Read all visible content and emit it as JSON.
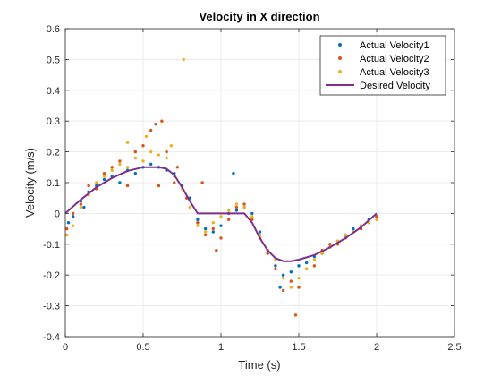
{
  "chart_data": {
    "type": "scatter",
    "title": "Velocity in X direction",
    "xlabel": "Time (s)",
    "ylabel": "Velocity (m/s)",
    "xlim": [
      0,
      2.5
    ],
    "ylim": [
      -0.4,
      0.6
    ],
    "xticks": [
      "0",
      "0.5",
      "1",
      "1.5",
      "2",
      "2.5"
    ],
    "yticks": [
      "-0.4",
      "-0.3",
      "-0.2",
      "-0.1",
      "0",
      "0.1",
      "0.2",
      "0.3",
      "0.4",
      "0.5",
      "0.6"
    ],
    "grid": true,
    "legend_position": "top-right",
    "series": [
      {
        "name": "Actual Velocity1",
        "type": "scatter",
        "color": "#0072BD",
        "points": [
          [
            0.02,
            -0.03
          ],
          [
            0.05,
            -0.01
          ],
          [
            0.1,
            0.04
          ],
          [
            0.15,
            0.07
          ],
          [
            0.2,
            0.09
          ],
          [
            0.25,
            0.11
          ],
          [
            0.3,
            0.12
          ],
          [
            0.35,
            0.1
          ],
          [
            0.4,
            0.14
          ],
          [
            0.45,
            0.13
          ],
          [
            0.5,
            0.15
          ],
          [
            0.55,
            0.16
          ],
          [
            0.6,
            0.15
          ],
          [
            0.65,
            0.14
          ],
          [
            0.7,
            0.13
          ],
          [
            0.75,
            0.09
          ],
          [
            0.8,
            0.05
          ],
          [
            0.85,
            -0.02
          ],
          [
            0.9,
            -0.05
          ],
          [
            0.95,
            -0.06
          ],
          [
            1.0,
            -0.04
          ],
          [
            1.05,
            0.0
          ],
          [
            1.1,
            0.01
          ],
          [
            1.15,
            0.02
          ],
          [
            1.2,
            0.0
          ],
          [
            1.25,
            -0.06
          ],
          [
            1.3,
            -0.12
          ],
          [
            1.35,
            -0.17
          ],
          [
            1.4,
            -0.2
          ],
          [
            1.45,
            -0.19
          ],
          [
            1.5,
            -0.17
          ],
          [
            1.55,
            -0.16
          ],
          [
            1.6,
            -0.14
          ],
          [
            1.65,
            -0.13
          ],
          [
            1.7,
            -0.11
          ],
          [
            1.75,
            -0.09
          ],
          [
            1.8,
            -0.07
          ],
          [
            1.85,
            -0.05
          ],
          [
            1.9,
            -0.04
          ],
          [
            1.95,
            -0.02
          ],
          [
            2.0,
            -0.01
          ],
          [
            1.38,
            -0.24
          ],
          [
            1.08,
            0.13
          ],
          [
            0.12,
            0.02
          ]
        ]
      },
      {
        "name": "Actual Velocity2",
        "type": "scatter",
        "color": "#D95319",
        "points": [
          [
            0.01,
            -0.05
          ],
          [
            0.05,
            0.0
          ],
          [
            0.1,
            0.03
          ],
          [
            0.15,
            0.09
          ],
          [
            0.2,
            0.08
          ],
          [
            0.25,
            0.13
          ],
          [
            0.3,
            0.15
          ],
          [
            0.35,
            0.17
          ],
          [
            0.4,
            0.09
          ],
          [
            0.45,
            0.2
          ],
          [
            0.5,
            0.22
          ],
          [
            0.55,
            0.27
          ],
          [
            0.58,
            0.29
          ],
          [
            0.6,
            0.09
          ],
          [
            0.62,
            0.3
          ],
          [
            0.65,
            0.2
          ],
          [
            0.7,
            0.1
          ],
          [
            0.72,
            0.15
          ],
          [
            0.78,
            0.05
          ],
          [
            0.85,
            -0.03
          ],
          [
            0.9,
            -0.07
          ],
          [
            0.95,
            -0.05
          ],
          [
            1.0,
            -0.08
          ],
          [
            1.05,
            -0.02
          ],
          [
            1.1,
            0.02
          ],
          [
            1.15,
            0.03
          ],
          [
            1.2,
            -0.02
          ],
          [
            1.25,
            -0.08
          ],
          [
            1.3,
            -0.13
          ],
          [
            1.35,
            -0.18
          ],
          [
            1.4,
            -0.25
          ],
          [
            1.45,
            -0.22
          ],
          [
            1.48,
            -0.33
          ],
          [
            1.5,
            -0.24
          ],
          [
            1.55,
            -0.18
          ],
          [
            1.6,
            -0.17
          ],
          [
            1.65,
            -0.12
          ],
          [
            1.7,
            -0.1
          ],
          [
            1.75,
            -0.1
          ],
          [
            1.8,
            -0.08
          ],
          [
            1.85,
            -0.06
          ],
          [
            1.9,
            -0.05
          ],
          [
            1.95,
            -0.03
          ],
          [
            2.0,
            -0.01
          ],
          [
            0.88,
            0.1
          ],
          [
            0.97,
            -0.12
          ]
        ]
      },
      {
        "name": "Actual Velocity3",
        "type": "scatter",
        "color": "#EDB120",
        "points": [
          [
            0.01,
            -0.07
          ],
          [
            0.05,
            -0.04
          ],
          [
            0.1,
            0.02
          ],
          [
            0.15,
            0.06
          ],
          [
            0.2,
            0.1
          ],
          [
            0.25,
            0.12
          ],
          [
            0.3,
            0.14
          ],
          [
            0.35,
            0.16
          ],
          [
            0.4,
            0.15
          ],
          [
            0.45,
            0.18
          ],
          [
            0.5,
            0.17
          ],
          [
            0.55,
            0.2
          ],
          [
            0.6,
            0.19
          ],
          [
            0.65,
            0.18
          ],
          [
            0.7,
            0.12
          ],
          [
            0.75,
            0.08
          ],
          [
            0.76,
            0.5
          ],
          [
            0.8,
            0.02
          ],
          [
            0.85,
            -0.04
          ],
          [
            0.9,
            -0.06
          ],
          [
            0.95,
            -0.03
          ],
          [
            1.0,
            -0.01
          ],
          [
            1.05,
            0.01
          ],
          [
            1.1,
            0.03
          ],
          [
            1.15,
            0.02
          ],
          [
            1.2,
            -0.01
          ],
          [
            1.25,
            -0.07
          ],
          [
            1.3,
            -0.12
          ],
          [
            1.35,
            -0.15
          ],
          [
            1.4,
            -0.21
          ],
          [
            1.45,
            -0.24
          ],
          [
            1.5,
            -0.21
          ],
          [
            1.55,
            -0.18
          ],
          [
            1.6,
            -0.15
          ],
          [
            1.65,
            -0.13
          ],
          [
            1.7,
            -0.11
          ],
          [
            1.75,
            -0.09
          ],
          [
            1.8,
            -0.07
          ],
          [
            1.85,
            -0.06
          ],
          [
            1.9,
            -0.04
          ],
          [
            1.95,
            -0.03
          ],
          [
            2.0,
            -0.02
          ],
          [
            0.4,
            0.23
          ],
          [
            0.52,
            0.25
          ],
          [
            0.68,
            0.22
          ]
        ]
      },
      {
        "name": "Desired Velocity",
        "type": "line",
        "color": "#7E2F8E",
        "points": [
          [
            0.0,
            0.0
          ],
          [
            0.1,
            0.045
          ],
          [
            0.2,
            0.085
          ],
          [
            0.3,
            0.115
          ],
          [
            0.4,
            0.138
          ],
          [
            0.5,
            0.15
          ],
          [
            0.6,
            0.15
          ],
          [
            0.65,
            0.145
          ],
          [
            0.7,
            0.125
          ],
          [
            0.75,
            0.085
          ],
          [
            0.8,
            0.04
          ],
          [
            0.85,
            0.0
          ],
          [
            1.15,
            0.0
          ],
          [
            1.2,
            -0.03
          ],
          [
            1.25,
            -0.08
          ],
          [
            1.3,
            -0.12
          ],
          [
            1.35,
            -0.145
          ],
          [
            1.4,
            -0.155
          ],
          [
            1.45,
            -0.155
          ],
          [
            1.5,
            -0.15
          ],
          [
            1.6,
            -0.135
          ],
          [
            1.7,
            -0.11
          ],
          [
            1.8,
            -0.08
          ],
          [
            1.9,
            -0.045
          ],
          [
            2.0,
            0.0
          ]
        ]
      }
    ]
  }
}
